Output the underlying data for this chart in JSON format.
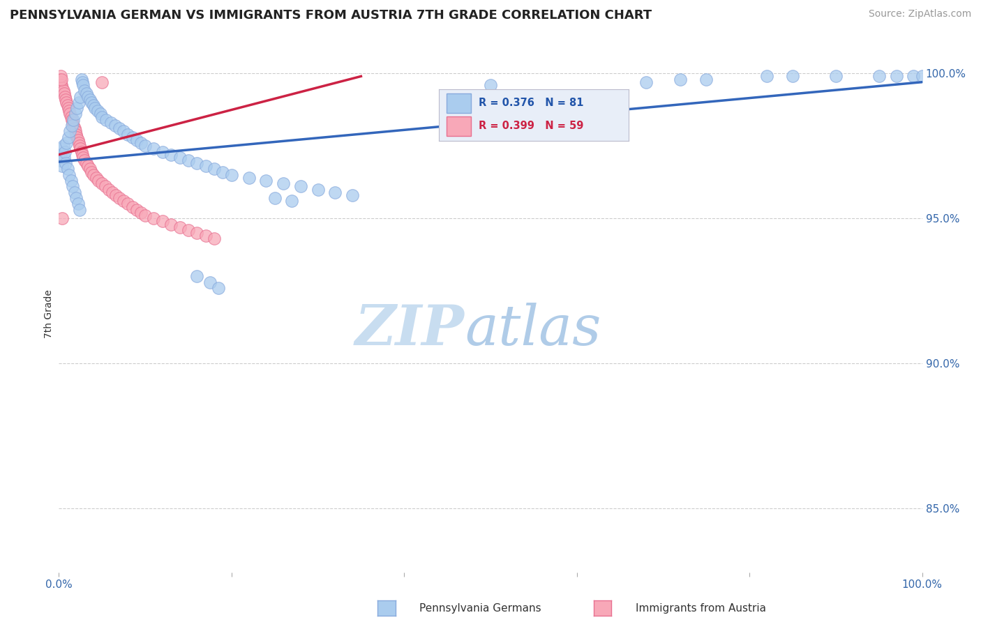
{
  "title": "PENNSYLVANIA GERMAN VS IMMIGRANTS FROM AUSTRIA 7TH GRADE CORRELATION CHART",
  "source": "Source: ZipAtlas.com",
  "ylabel": "7th Grade",
  "xlim": [
    0,
    1.0
  ],
  "ylim": [
    0.828,
    1.006
  ],
  "ytick_right_vals": [
    0.85,
    0.9,
    0.95,
    1.0
  ],
  "ytick_right_labels": [
    "85.0%",
    "90.0%",
    "95.0%",
    "100.0%"
  ],
  "grid_color": "#cccccc",
  "background_color": "#ffffff",
  "blue_color": "#aaccee",
  "blue_edge": "#88aadd",
  "pink_color": "#f8a8b8",
  "pink_edge": "#e87090",
  "trend_blue": "#3366bb",
  "trend_pink": "#cc2244",
  "R_blue": 0.376,
  "N_blue": 81,
  "R_pink": 0.399,
  "N_pink": 59,
  "legend_label_blue": "Pennsylvania Germans",
  "legend_label_pink": "Immigrants from Austria",
  "blue_scatter_x": [
    0.001,
    0.002,
    0.003,
    0.004,
    0.005,
    0.006,
    0.007,
    0.008,
    0.009,
    0.01,
    0.011,
    0.012,
    0.013,
    0.014,
    0.015,
    0.016,
    0.017,
    0.018,
    0.019,
    0.02,
    0.021,
    0.022,
    0.023,
    0.024,
    0.025,
    0.026,
    0.027,
    0.028,
    0.03,
    0.032,
    0.034,
    0.036,
    0.038,
    0.04,
    0.042,
    0.045,
    0.048,
    0.05,
    0.055,
    0.06,
    0.065,
    0.07,
    0.075,
    0.08,
    0.085,
    0.09,
    0.095,
    0.1,
    0.11,
    0.12,
    0.13,
    0.14,
    0.15,
    0.16,
    0.17,
    0.18,
    0.19,
    0.2,
    0.22,
    0.24,
    0.26,
    0.28,
    0.3,
    0.32,
    0.34,
    0.16,
    0.175,
    0.185,
    0.25,
    0.27,
    0.5,
    0.68,
    0.72,
    0.75,
    0.82,
    0.85,
    0.9,
    0.95,
    0.97,
    0.99,
    1.0
  ],
  "blue_scatter_y": [
    0.97,
    0.972,
    0.974,
    0.968,
    0.975,
    0.971,
    0.973,
    0.969,
    0.976,
    0.967,
    0.978,
    0.965,
    0.98,
    0.963,
    0.982,
    0.961,
    0.984,
    0.959,
    0.986,
    0.957,
    0.988,
    0.955,
    0.99,
    0.953,
    0.992,
    0.998,
    0.997,
    0.996,
    0.994,
    0.993,
    0.992,
    0.991,
    0.99,
    0.989,
    0.988,
    0.987,
    0.986,
    0.985,
    0.984,
    0.983,
    0.982,
    0.981,
    0.98,
    0.979,
    0.978,
    0.977,
    0.976,
    0.975,
    0.974,
    0.973,
    0.972,
    0.971,
    0.97,
    0.969,
    0.968,
    0.967,
    0.966,
    0.965,
    0.964,
    0.963,
    0.962,
    0.961,
    0.96,
    0.959,
    0.958,
    0.93,
    0.928,
    0.926,
    0.957,
    0.956,
    0.996,
    0.997,
    0.998,
    0.998,
    0.999,
    0.999,
    0.999,
    0.999,
    0.999,
    0.999,
    0.999
  ],
  "pink_scatter_x": [
    0.001,
    0.002,
    0.003,
    0.004,
    0.005,
    0.006,
    0.007,
    0.008,
    0.009,
    0.01,
    0.011,
    0.012,
    0.013,
    0.014,
    0.015,
    0.016,
    0.017,
    0.018,
    0.019,
    0.02,
    0.021,
    0.022,
    0.023,
    0.024,
    0.025,
    0.026,
    0.027,
    0.028,
    0.03,
    0.032,
    0.034,
    0.036,
    0.038,
    0.04,
    0.043,
    0.046,
    0.05,
    0.054,
    0.058,
    0.062,
    0.066,
    0.07,
    0.075,
    0.08,
    0.085,
    0.09,
    0.095,
    0.1,
    0.11,
    0.12,
    0.13,
    0.14,
    0.15,
    0.16,
    0.17,
    0.18,
    0.002,
    0.003,
    0.05
  ],
  "pink_scatter_y": [
    0.998,
    0.997,
    0.996,
    0.995,
    0.994,
    0.993,
    0.992,
    0.991,
    0.99,
    0.989,
    0.988,
    0.987,
    0.986,
    0.985,
    0.984,
    0.983,
    0.982,
    0.981,
    0.98,
    0.979,
    0.978,
    0.977,
    0.976,
    0.975,
    0.974,
    0.973,
    0.972,
    0.971,
    0.97,
    0.969,
    0.968,
    0.967,
    0.966,
    0.965,
    0.964,
    0.963,
    0.962,
    0.961,
    0.96,
    0.959,
    0.958,
    0.957,
    0.956,
    0.955,
    0.954,
    0.953,
    0.952,
    0.951,
    0.95,
    0.949,
    0.948,
    0.947,
    0.946,
    0.945,
    0.944,
    0.943,
    0.999,
    0.998,
    0.997
  ],
  "pink_outlier_x": [
    0.004
  ],
  "pink_outlier_y": [
    0.95
  ]
}
